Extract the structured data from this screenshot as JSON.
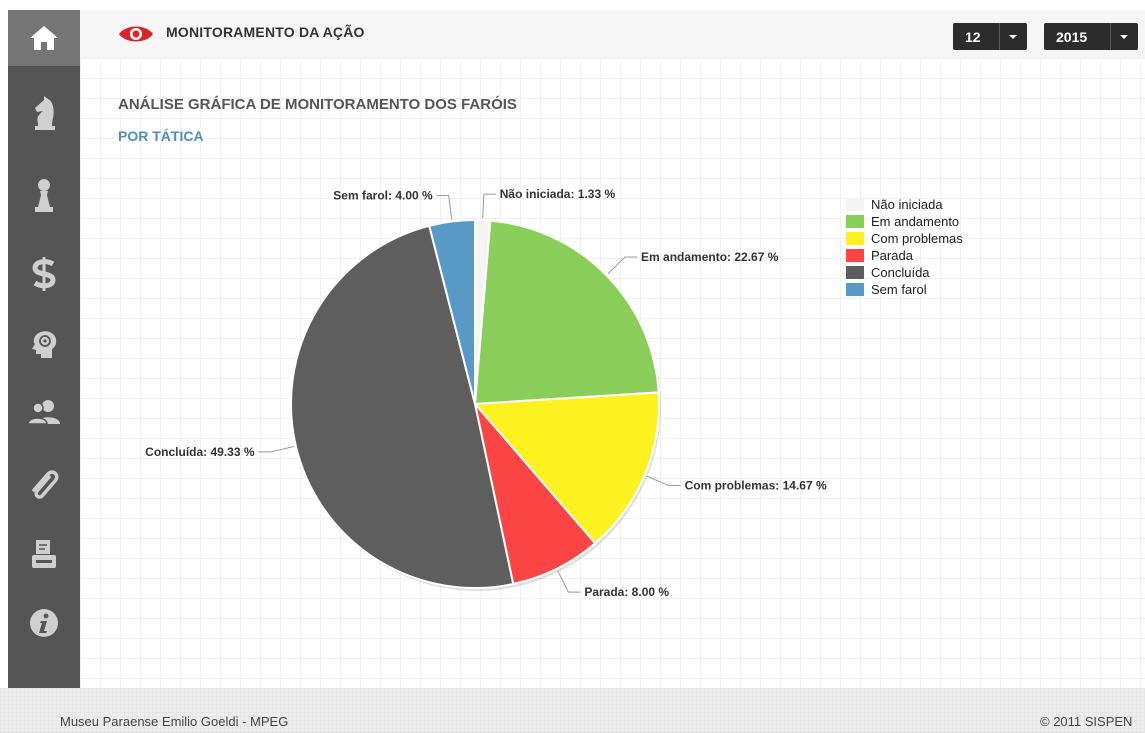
{
  "header": {
    "title": "MONITORAMENTO DA AÇÃO",
    "month_select": "12",
    "year_select": "2015"
  },
  "sidebar": {
    "items": [
      {
        "icon": "home-icon",
        "active": true
      },
      {
        "icon": "knight-icon"
      },
      {
        "icon": "pawn-icon"
      },
      {
        "icon": "dollar-icon"
      },
      {
        "icon": "brain-icon"
      },
      {
        "icon": "users-icon"
      },
      {
        "icon": "paperclip-icon"
      },
      {
        "icon": "printer-icon"
      },
      {
        "icon": "info-icon"
      }
    ]
  },
  "chart_data": {
    "type": "pie",
    "title": "ANÁLISE GRÁFICA DE MONITORAMENTO DOS FARÓIS",
    "subtitle": "POR TÁTICA",
    "legend_position": "top-right",
    "slices": [
      {
        "name": "Não iniciada",
        "value": 1.33,
        "label": "Não iniciada: 1.33 %",
        "color": "#f4f4f4"
      },
      {
        "name": "Em andamento",
        "value": 22.67,
        "label": "Em andamento: 22.67 %",
        "color": "#88ce58"
      },
      {
        "name": "Com problemas",
        "value": 14.67,
        "label": "Com problemas: 14.67 %",
        "color": "#fbf21f"
      },
      {
        "name": "Parada",
        "value": 8.0,
        "label": "Parada: 8.00 %",
        "color": "#fb4544"
      },
      {
        "name": "Concluída",
        "value": 49.33,
        "label": "Concluída: 49.33 %",
        "color": "#5e5e5e"
      },
      {
        "name": "Sem farol",
        "value": 4.0,
        "label": "Sem farol: 4.00 %",
        "color": "#5899c5"
      }
    ]
  },
  "footer": {
    "left_text": "Museu Paraense Emilio Goeldi - MPEG",
    "right_text": "© 2011 SISPEN"
  },
  "colors": {
    "sidebar_bg": "#555555",
    "accent_blue": "#4a90b8",
    "header_bg": "#f6f6f6",
    "select_bg": "#2c2c2c",
    "eye_red": "#d9262c"
  }
}
